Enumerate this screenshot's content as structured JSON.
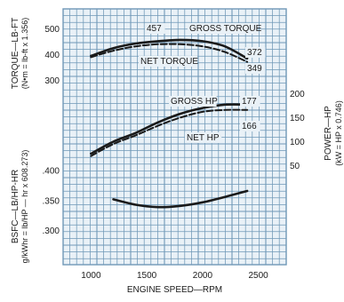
{
  "chart_data": {
    "type": "line",
    "xlabel": "ENGINE SPEED—RPM",
    "x_ticks": [
      "1000",
      "1500",
      "2000",
      "2500"
    ],
    "xlim": [
      750,
      2750
    ],
    "colors": {
      "background": "#ffffff",
      "grid": "#6f98b7",
      "curve": "#1a1a1a"
    },
    "grid": true,
    "panels": [
      {
        "id": "torque",
        "ylabel": "TORQUE—LB-FT",
        "ylabel_sub": "(N•m = lb-ft x 1.356)",
        "ylabel_side": "left",
        "y_ticks": [
          "500",
          "400",
          "300"
        ],
        "ylim": [
          250,
          560
        ],
        "series": [
          {
            "name": "GROSS TORQUE",
            "style": "solid",
            "x": [
              1000,
              1200,
              1400,
              1600,
              1800,
              2000,
              2200,
              2400
            ],
            "y": [
              395,
              425,
              443,
              452,
              457,
              452,
              432,
              385
            ]
          },
          {
            "name": "NET TORQUE",
            "style": "dashed",
            "x": [
              1000,
              1200,
              1400,
              1600,
              1800,
              2000,
              2200,
              2400
            ],
            "y": [
              390,
              415,
              432,
              440,
              440,
              432,
              410,
              372
            ]
          }
        ],
        "annotations": [
          "457",
          "372",
          "349"
        ]
      },
      {
        "id": "power",
        "ylabel": "POWER—HP",
        "ylabel_sub": "(kW = HP x 0.746)",
        "ylabel_side": "right",
        "y_ticks": [
          "200",
          "150",
          "100",
          "50"
        ],
        "ylim": [
          25,
          210
        ],
        "series": [
          {
            "name": "GROSS HP",
            "style": "solid",
            "x": [
              1000,
              1200,
              1400,
              1600,
              1800,
              2000,
              2200,
              2400
            ],
            "y": [
              75,
              100,
              118,
              140,
              158,
              170,
              177,
              177
            ]
          },
          {
            "name": "NET HP",
            "style": "dashed",
            "x": [
              1000,
              1200,
              1400,
              1600,
              1800,
              2000,
              2200,
              2400
            ],
            "y": [
              70,
              95,
              113,
              133,
              150,
              162,
              166,
              166
            ]
          }
        ],
        "annotations": [
          "177",
          "166"
        ]
      },
      {
        "id": "bsfc",
        "ylabel": "BSFC—LB/HP-HR",
        "ylabel_sub": "g/kWhr = lb/HP — hr x 608.273)",
        "ylabel_side": "left",
        "y_ticks": [
          ".400",
          ".350",
          ".300"
        ],
        "ylim": [
          0.262,
          0.418
        ],
        "series": [
          {
            "name": "BSFC",
            "style": "solid",
            "x": [
              1200,
              1400,
              1600,
              1800,
              2000,
              2200,
              2400
            ],
            "y": [
              0.352,
              0.343,
              0.339,
              0.341,
              0.347,
              0.356,
              0.366
            ]
          }
        ]
      }
    ]
  }
}
